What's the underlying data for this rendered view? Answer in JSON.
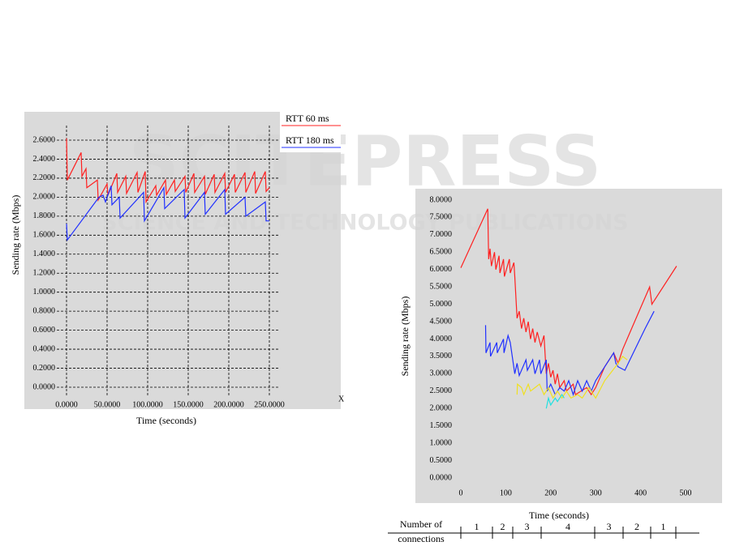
{
  "watermark": {
    "title": "SCITEPRESS",
    "subtitle": "SCIENCE AND TECHNOLOGY PUBLICATIONS"
  },
  "chart_data": [
    {
      "type": "line",
      "xlabel": "Time (seconds)",
      "ylabel": "Sending rate (Mbps)",
      "annotations": [
        "X"
      ],
      "xlim": [
        0,
        250
      ],
      "ylim": [
        0,
        2.6
      ],
      "grid": true,
      "legend": "upper right",
      "xticks": [
        {
          "value": 0,
          "label": "0.0000"
        },
        {
          "value": 50,
          "label": "50.0000"
        },
        {
          "value": 100,
          "label": "100.0000"
        },
        {
          "value": 150,
          "label": "150.0000"
        },
        {
          "value": 200,
          "label": "200.0000"
        },
        {
          "value": 250,
          "label": "250.0000"
        }
      ],
      "yticks": [
        {
          "value": 0,
          "label": "0.0000"
        },
        {
          "value": 0.2,
          "label": "0.2000"
        },
        {
          "value": 0.4,
          "label": "0.4000"
        },
        {
          "value": 0.6,
          "label": "0.6000"
        },
        {
          "value": 0.8,
          "label": "0.8000"
        },
        {
          "value": 1,
          "label": "1.0000"
        },
        {
          "value": 1.2,
          "label": "1.2000"
        },
        {
          "value": 1.4,
          "label": "1.4000"
        },
        {
          "value": 1.6,
          "label": "1.6000"
        },
        {
          "value": 1.8,
          "label": "1.8000"
        },
        {
          "value": 2,
          "label": "2.0000"
        },
        {
          "value": 2.2,
          "label": "2.2000"
        },
        {
          "value": 2.4,
          "label": "2.4000"
        },
        {
          "value": 2.6,
          "label": "2.6000"
        }
      ],
      "series": [
        {
          "name": "RTT 60 ms",
          "color": "#ff2020",
          "x": [
            0,
            1,
            18,
            19,
            24,
            25,
            38,
            39,
            50,
            51,
            62,
            63,
            73,
            74,
            87,
            88,
            97,
            98,
            110,
            111,
            122,
            123,
            133,
            134,
            146,
            147,
            157,
            158,
            170,
            171,
            182,
            183,
            195,
            196,
            207,
            208,
            220,
            221,
            232,
            233,
            245,
            246,
            250
          ],
          "values": [
            2.62,
            2.18,
            2.47,
            2.22,
            2.3,
            2.1,
            2.18,
            1.97,
            2.14,
            2.02,
            2.25,
            2.05,
            2.22,
            2.04,
            2.26,
            2.05,
            2.27,
            1.95,
            2.12,
            2.02,
            2.18,
            2.03,
            2.18,
            2.06,
            2.22,
            2.05,
            2.25,
            2.05,
            2.22,
            2.03,
            2.24,
            2.05,
            2.25,
            2.05,
            2.24,
            2.05,
            2.26,
            2.05,
            2.27,
            2.04,
            2.27,
            2.06,
            2.1
          ]
        },
        {
          "name": "RTT 180 ms",
          "color": "#2030ff",
          "x": [
            0,
            1,
            40,
            45,
            48,
            55,
            56,
            65,
            66,
            95,
            96,
            120,
            121,
            145,
            146,
            170,
            171,
            195,
            196,
            220,
            221,
            245,
            246,
            250
          ],
          "values": [
            1.72,
            1.55,
            2.0,
            2.02,
            1.95,
            2.12,
            1.92,
            2.0,
            1.78,
            2.05,
            1.75,
            2.1,
            1.88,
            2.08,
            1.78,
            2.05,
            1.82,
            2.08,
            1.82,
            2.0,
            1.8,
            1.95,
            1.75,
            1.75
          ]
        }
      ]
    },
    {
      "type": "line",
      "xlabel": "Time (seconds)",
      "ylabel": "Sending rate (Mbps)",
      "xlim": [
        0,
        500
      ],
      "ylim": [
        0,
        8
      ],
      "grid": false,
      "xticks": [
        0,
        100,
        200,
        300,
        400,
        500
      ],
      "yticks": [
        {
          "value": 0,
          "label": "0.0000"
        },
        {
          "value": 0.5,
          "label": "0.5000"
        },
        {
          "value": 1,
          "label": "1.0000"
        },
        {
          "value": 1.5,
          "label": "1.5000"
        },
        {
          "value": 2,
          "label": "2.0000"
        },
        {
          "value": 2.5,
          "label": "2.5000"
        },
        {
          "value": 3,
          "label": "3.0000"
        },
        {
          "value": 3.5,
          "label": "3.5000"
        },
        {
          "value": 4,
          "label": "4.0000"
        },
        {
          "value": 4.5,
          "label": "4.5000"
        },
        {
          "value": 5,
          "label": "5.0000"
        },
        {
          "value": 5.5,
          "label": "5.5000"
        },
        {
          "value": 6,
          "label": "6.0000"
        },
        {
          "value": 6.5,
          "label": "6.5000"
        },
        {
          "value": 7,
          "label": "7.0000"
        },
        {
          "value": 7.5,
          "label": "7.5000"
        },
        {
          "value": 8,
          "label": "8.0000"
        }
      ],
      "series": [
        {
          "color": "#ff2020",
          "x": [
            0,
            60,
            62,
            65,
            68,
            75,
            78,
            85,
            87,
            95,
            97,
            108,
            110,
            118,
            120,
            125,
            130,
            135,
            140,
            145,
            150,
            155,
            160,
            165,
            170,
            178,
            185,
            190,
            195,
            200,
            205,
            210,
            215,
            220,
            230,
            235,
            250,
            255,
            280,
            290,
            300,
            320,
            340,
            350,
            360,
            380,
            420,
            425,
            480
          ],
          "values": [
            6.05,
            7.75,
            6.3,
            6.6,
            6.1,
            6.5,
            6.0,
            6.4,
            5.9,
            6.3,
            5.8,
            6.3,
            5.9,
            6.2,
            5.8,
            4.6,
            4.8,
            4.3,
            4.6,
            4.2,
            4.5,
            4.0,
            4.3,
            3.9,
            4.2,
            3.8,
            4.1,
            3.0,
            3.3,
            2.9,
            3.1,
            2.7,
            3.0,
            2.6,
            2.8,
            2.5,
            2.7,
            2.4,
            2.6,
            2.4,
            2.6,
            3.2,
            3.6,
            3.3,
            3.7,
            4.3,
            5.5,
            5.0,
            6.1
          ]
        },
        {
          "color": "#2030ff",
          "x": [
            55,
            56,
            65,
            66,
            80,
            81,
            95,
            96,
            105,
            110,
            120,
            125,
            130,
            145,
            148,
            160,
            165,
            175,
            178,
            190,
            192,
            200,
            210,
            220,
            230,
            240,
            250,
            260,
            270,
            280,
            290,
            300,
            320,
            340,
            345,
            350,
            365,
            380,
            410,
            430
          ],
          "values": [
            4.4,
            3.6,
            3.9,
            3.5,
            3.9,
            3.6,
            4.0,
            3.6,
            4.1,
            3.9,
            3.0,
            3.3,
            2.95,
            3.4,
            3.1,
            3.4,
            3.0,
            3.4,
            3.0,
            3.4,
            2.5,
            2.7,
            2.4,
            2.6,
            2.5,
            2.8,
            2.4,
            2.8,
            2.5,
            2.8,
            2.5,
            2.8,
            3.2,
            3.6,
            3.3,
            3.2,
            3.1,
            3.5,
            4.3,
            4.8
          ]
        },
        {
          "color": "#f0e020",
          "x": [
            125,
            126,
            135,
            140,
            150,
            155,
            165,
            175,
            185,
            195,
            205,
            215,
            225,
            235,
            245,
            260,
            270,
            285,
            300,
            320,
            350,
            360,
            370
          ],
          "values": [
            2.4,
            2.7,
            2.6,
            2.4,
            2.7,
            2.5,
            2.6,
            2.7,
            2.4,
            2.6,
            2.3,
            2.5,
            2.3,
            2.5,
            2.3,
            2.4,
            2.3,
            2.6,
            2.3,
            2.8,
            3.3,
            3.5,
            3.4
          ]
        },
        {
          "color": "#20e0e0",
          "x": [
            190,
            195,
            200,
            210,
            215,
            225,
            230
          ],
          "values": [
            2.0,
            2.3,
            2.1,
            2.3,
            2.2,
            2.4,
            2.3
          ]
        }
      ]
    }
  ],
  "connections_table": {
    "header": [
      "Number of",
      "connections"
    ],
    "cells": [
      "1",
      "2",
      "3",
      "4",
      "3",
      "2",
      "1"
    ]
  }
}
